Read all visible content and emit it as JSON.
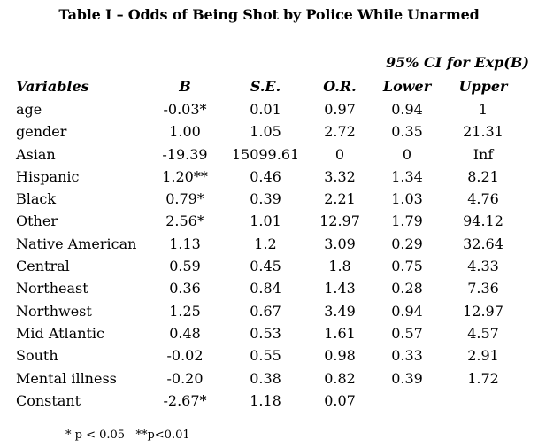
{
  "title": "Table I – Odds of Being Shot by Police While Unarmed",
  "ci_header": "95% CI for Exp(B)",
  "columns": {
    "variables": "Variables",
    "b": "B",
    "se": "S.E.",
    "or": "O.R.",
    "lower": "Lower",
    "upper": "Upper"
  },
  "rows": [
    {
      "variable": "age",
      "b": "-0.03*",
      "se": "0.01",
      "or": "0.97",
      "lower": "0.94",
      "upper": "1"
    },
    {
      "variable": "gender",
      "b": "1.00",
      "se": "1.05",
      "or": "2.72",
      "lower": "0.35",
      "upper": "21.31"
    },
    {
      "variable": "Asian",
      "b": "-19.39",
      "se": "15099.61",
      "or": "0",
      "lower": "0",
      "upper": "Inf"
    },
    {
      "variable": "Hispanic",
      "b": "1.20**",
      "se": "0.46",
      "or": "3.32",
      "lower": "1.34",
      "upper": "8.21"
    },
    {
      "variable": "Black",
      "b": "0.79*",
      "se": "0.39",
      "or": "2.21",
      "lower": "1.03",
      "upper": "4.76"
    },
    {
      "variable": "Other",
      "b": "2.56*",
      "se": "1.01",
      "or": "12.97",
      "lower": "1.79",
      "upper": "94.12"
    },
    {
      "variable": "Native American",
      "b": "1.13",
      "se": "1.2",
      "or": "3.09",
      "lower": "0.29",
      "upper": "32.64"
    },
    {
      "variable": "Central",
      "b": "0.59",
      "se": "0.45",
      "or": "1.8",
      "lower": "0.75",
      "upper": "4.33"
    },
    {
      "variable": "Northeast",
      "b": "0.36",
      "se": "0.84",
      "or": "1.43",
      "lower": "0.28",
      "upper": "7.36"
    },
    {
      "variable": "Northwest",
      "b": "1.25",
      "se": "0.67",
      "or": "3.49",
      "lower": "0.94",
      "upper": "12.97"
    },
    {
      "variable": "Mid Atlantic",
      "b": "0.48",
      "se": "0.53",
      "or": "1.61",
      "lower": "0.57",
      "upper": "4.57"
    },
    {
      "variable": "South",
      "b": "-0.02",
      "se": "0.55",
      "or": "0.98",
      "lower": "0.33",
      "upper": "2.91"
    },
    {
      "variable": "Mental illness",
      "b": "-0.20",
      "se": "0.38",
      "or": "0.82",
      "lower": "0.39",
      "upper": "1.72"
    },
    {
      "variable": "Constant",
      "b": "-2.67*",
      "se": "1.18",
      "or": "0.07",
      "lower": "",
      "upper": ""
    }
  ],
  "footnote": "* p < 0.05   **p<0.01"
}
